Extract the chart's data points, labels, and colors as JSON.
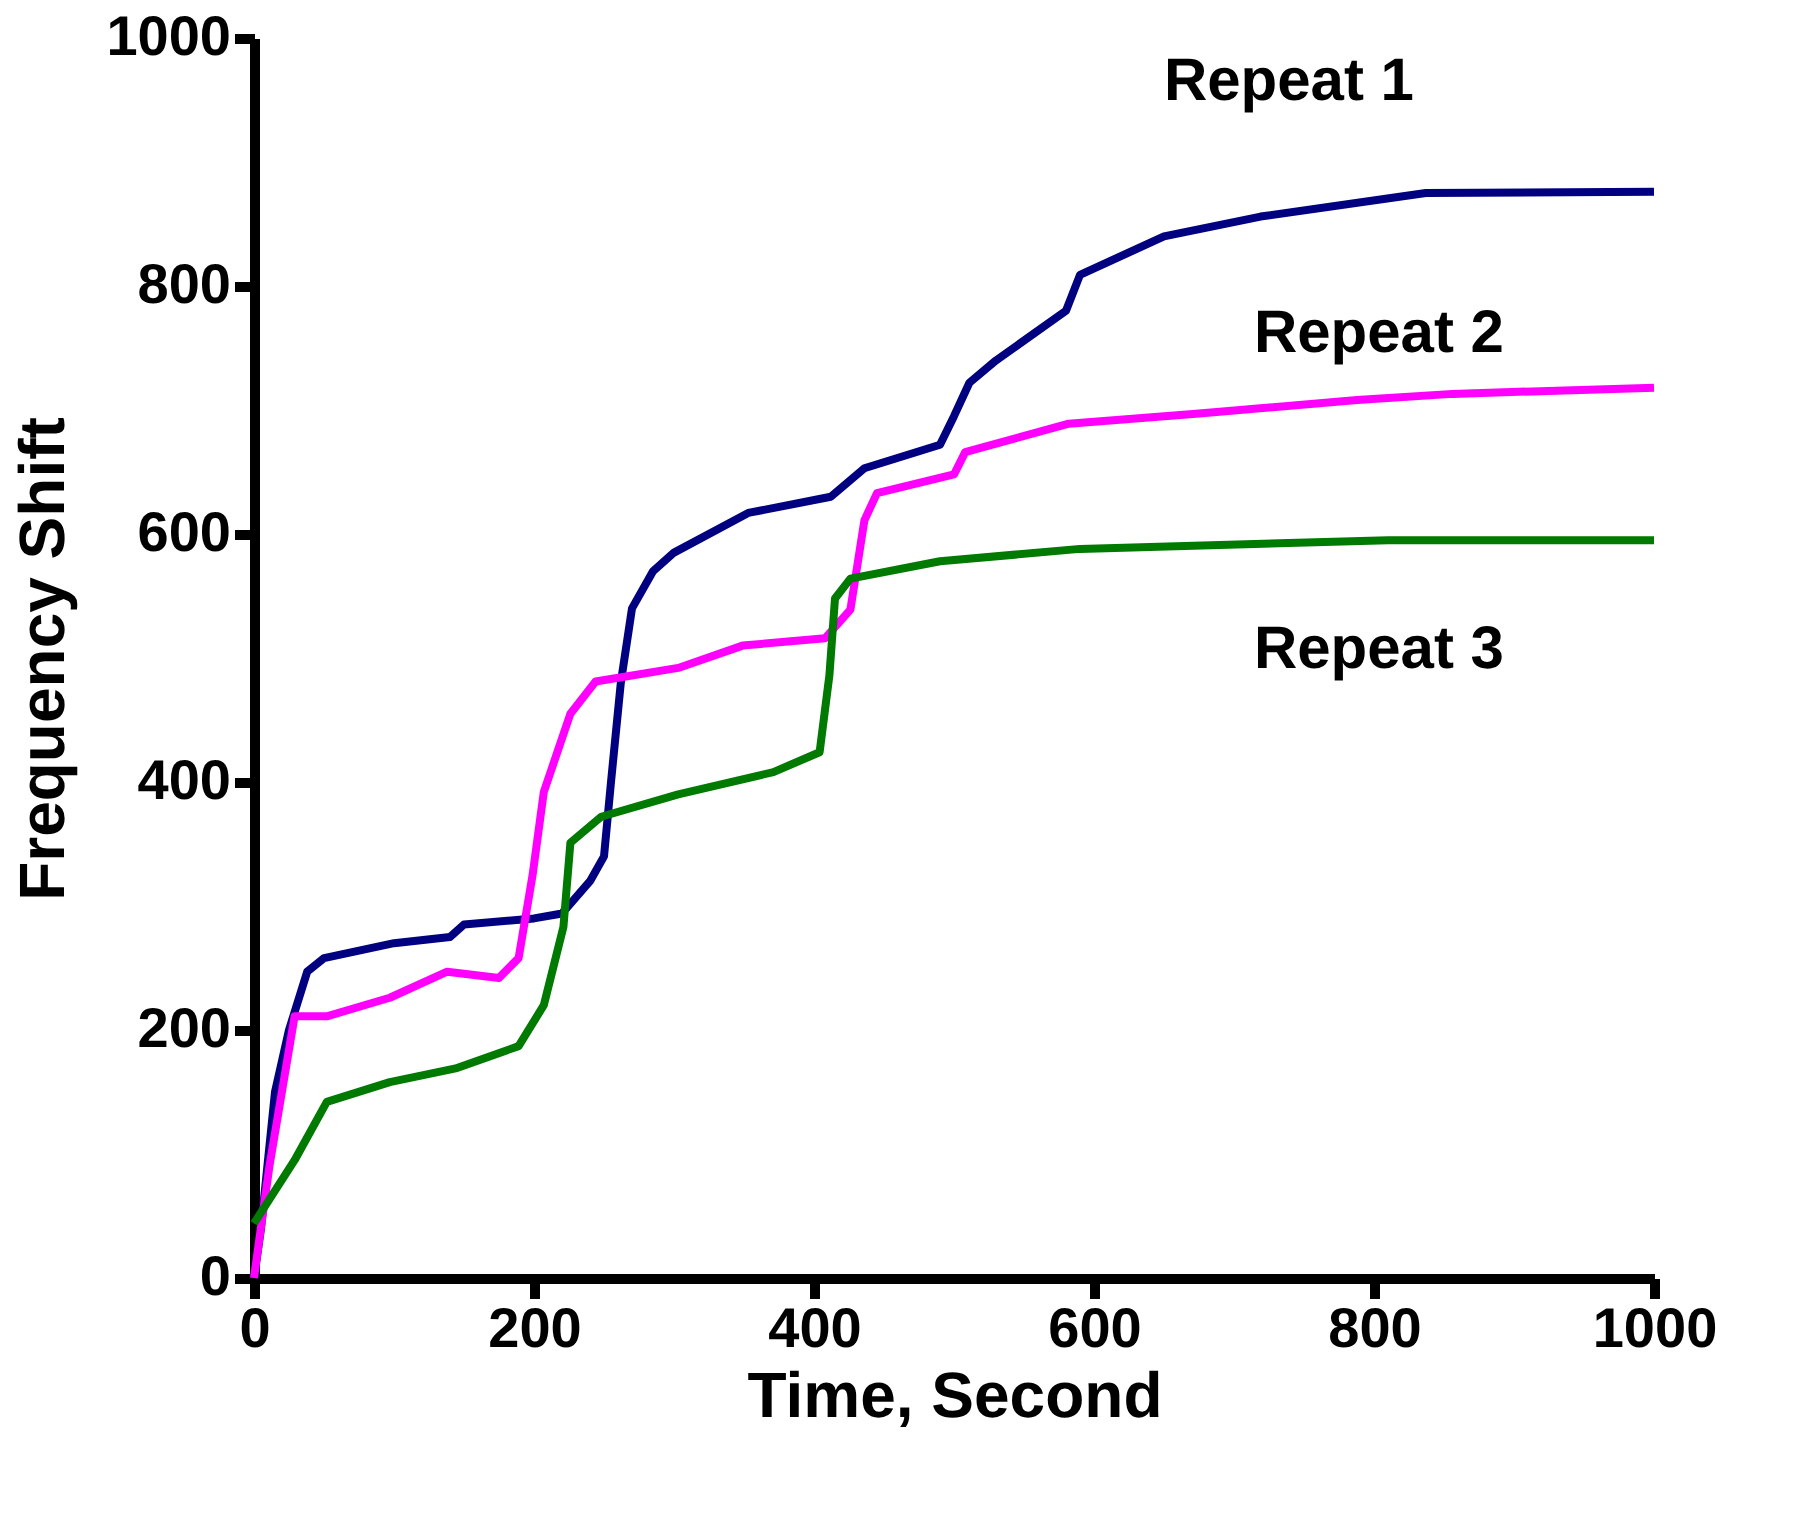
{
  "chart_data": {
    "type": "line",
    "xlabel": "Time, Second",
    "ylabel": "Frequency Shift",
    "xlim": [
      0,
      1000
    ],
    "ylim": [
      0,
      1000
    ],
    "xticks": [
      0,
      200,
      400,
      600,
      800,
      1000
    ],
    "yticks": [
      0,
      200,
      400,
      600,
      800,
      1000
    ],
    "grid": false,
    "marker": "none",
    "line_style": "solid",
    "series": [
      {
        "name": "Repeat 1",
        "color": "#000080",
        "x": [
          0,
          5,
          15,
          25,
          38,
          50,
          100,
          140,
          150,
          200,
          220,
          240,
          250,
          255,
          262,
          270,
          285,
          300,
          353,
          412,
          436,
          490,
          500,
          511,
          530,
          580,
          590,
          650,
          719,
          837,
          1000
        ],
        "values": [
          0,
          40,
          150,
          200,
          247,
          258,
          270,
          275,
          285,
          290,
          294,
          320,
          340,
          400,
          480,
          540,
          570,
          585,
          617,
          630,
          653,
          672,
          695,
          722,
          740,
          780,
          809,
          840,
          856,
          875,
          876
        ]
      },
      {
        "name": "Repeat 2",
        "color": "#ff00ff",
        "x": [
          0,
          11,
          29,
          52,
          97,
          138,
          175,
          189,
          199,
          207,
          226,
          244,
          303,
          349,
          408,
          426,
          436,
          445,
          500,
          508,
          582,
          673,
          788,
          856,
          1000
        ],
        "values": [
          0,
          90,
          211,
          211,
          226,
          247,
          242,
          258,
          325,
          392,
          455,
          481,
          492,
          510,
          516,
          539,
          611,
          633,
          648,
          666,
          689,
          697,
          708,
          713,
          718
        ]
      },
      {
        "name": "Repeat 3",
        "color": "#007a00",
        "x": [
          0,
          29,
          52,
          97,
          144,
          189,
          207,
          221,
          226,
          248,
          303,
          371,
          404,
          411,
          415,
          426,
          490,
          590,
          810,
          1000
        ],
        "values": [
          44,
          95,
          142,
          158,
          169,
          187,
          220,
          283,
          351,
          372,
          390,
          408,
          424,
          486,
          548,
          564,
          578,
          588,
          595,
          595
        ]
      }
    ]
  }
}
